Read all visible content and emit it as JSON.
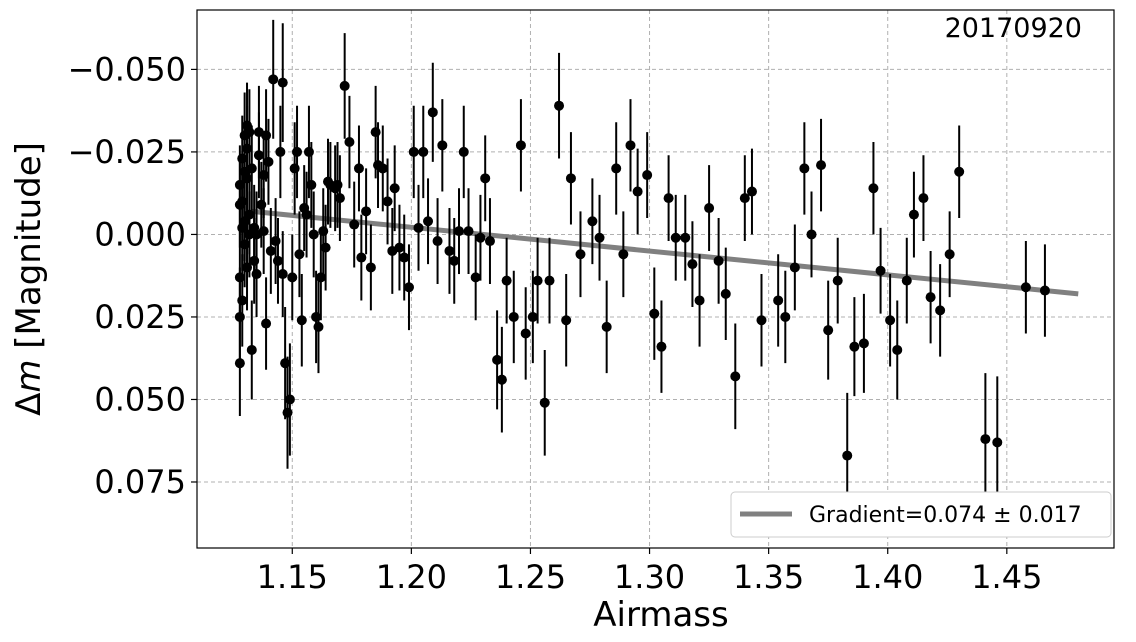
{
  "chart_data": {
    "type": "scatter",
    "title": "",
    "annotation": "20170920",
    "xlabel": "Airmass",
    "ylabel": "Δm [Magnitude]",
    "xlim": [
      1.11,
      1.495
    ],
    "ylim": [
      0.095,
      -0.068
    ],
    "y_inverted": true,
    "grid": true,
    "x_ticks": [
      1.15,
      1.2,
      1.25,
      1.3,
      1.35,
      1.4,
      1.45
    ],
    "x_tick_labels": [
      "1.15",
      "1.20",
      "1.25",
      "1.30",
      "1.35",
      "1.40",
      "1.45"
    ],
    "y_ticks": [
      -0.05,
      -0.025,
      0.0,
      0.025,
      0.05,
      0.075
    ],
    "y_tick_labels": [
      "−0.050",
      "−0.025",
      "0.000",
      "0.025",
      "0.050",
      "0.075"
    ],
    "legend": {
      "position": "bottom-right",
      "entries": [
        "Gradient=0.074 ± 0.017"
      ]
    },
    "colors": {
      "points": "#000000",
      "fit_line": "#808080",
      "grid": "#b0b0b0"
    },
    "fit": {
      "name": "Gradient=0.074 ± 0.017",
      "x": [
        1.133,
        1.48
      ],
      "y": [
        -0.007,
        0.018
      ]
    },
    "series": [
      {
        "points": [
          [
            1.128,
            0.039,
            0.016
          ],
          [
            1.128,
            0.025,
            0.015
          ],
          [
            1.128,
            0.013,
            0.014
          ],
          [
            1.128,
            -0.009,
            0.013
          ],
          [
            1.128,
            -0.015,
            0.012
          ],
          [
            1.129,
            0.02,
            0.014
          ],
          [
            1.129,
            -0.002,
            0.013
          ],
          [
            1.129,
            -0.023,
            0.013
          ],
          [
            1.129,
            -0.01,
            0.012
          ],
          [
            1.13,
            0.003,
            0.013
          ],
          [
            1.13,
            -0.019,
            0.013
          ],
          [
            1.13,
            -0.03,
            0.013
          ],
          [
            1.13,
            -0.004,
            0.012
          ],
          [
            1.131,
            0.01,
            0.013
          ],
          [
            1.131,
            -0.033,
            0.013
          ],
          [
            1.131,
            -0.017,
            0.013
          ],
          [
            1.131,
            -0.026,
            0.013
          ],
          [
            1.132,
            -0.006,
            0.012
          ],
          [
            1.132,
            0.0,
            0.013
          ],
          [
            1.132,
            -0.031,
            0.013
          ],
          [
            1.133,
            -0.02,
            0.013
          ],
          [
            1.133,
            0.035,
            0.015
          ],
          [
            1.134,
            0.008,
            0.013
          ],
          [
            1.134,
            -0.002,
            0.013
          ],
          [
            1.135,
            0.012,
            0.013
          ],
          [
            1.135,
            0.0,
            0.013
          ],
          [
            1.136,
            -0.031,
            0.014
          ],
          [
            1.136,
            -0.024,
            0.013
          ],
          [
            1.137,
            -0.009,
            0.013
          ],
          [
            1.138,
            -0.018,
            0.013
          ],
          [
            1.138,
            -0.001,
            0.013
          ],
          [
            1.139,
            -0.03,
            0.014
          ],
          [
            1.139,
            0.027,
            0.014
          ],
          [
            1.14,
            -0.022,
            0.013
          ],
          [
            1.141,
            0.005,
            0.013
          ],
          [
            1.142,
            -0.047,
            0.018
          ],
          [
            1.143,
            0.002,
            0.013
          ],
          [
            1.144,
            0.008,
            0.013
          ],
          [
            1.145,
            -0.025,
            0.014
          ],
          [
            1.146,
            -0.046,
            0.018
          ],
          [
            1.146,
            0.012,
            0.013
          ],
          [
            1.147,
            0.039,
            0.017
          ],
          [
            1.148,
            0.054,
            0.017
          ],
          [
            1.149,
            0.05,
            0.017
          ],
          [
            1.15,
            0.013,
            0.013
          ],
          [
            1.151,
            -0.02,
            0.014
          ],
          [
            1.152,
            -0.025,
            0.014
          ],
          [
            1.153,
            0.006,
            0.013
          ],
          [
            1.154,
            0.026,
            0.014
          ],
          [
            1.155,
            -0.008,
            0.013
          ],
          [
            1.156,
            -0.006,
            0.013
          ],
          [
            1.157,
            -0.025,
            0.014
          ],
          [
            1.158,
            -0.015,
            0.013
          ],
          [
            1.159,
            0.0,
            0.013
          ],
          [
            1.16,
            0.025,
            0.014
          ],
          [
            1.161,
            0.028,
            0.014
          ],
          [
            1.162,
            0.013,
            0.013
          ],
          [
            1.163,
            -0.001,
            0.013
          ],
          [
            1.164,
            0.004,
            0.013
          ],
          [
            1.165,
            -0.016,
            0.013
          ],
          [
            1.166,
            -0.015,
            0.013
          ],
          [
            1.168,
            -0.014,
            0.013
          ],
          [
            1.169,
            -0.015,
            0.013
          ],
          [
            1.17,
            -0.011,
            0.013
          ],
          [
            1.172,
            -0.045,
            0.016
          ],
          [
            1.174,
            -0.028,
            0.014
          ],
          [
            1.176,
            -0.003,
            0.013
          ],
          [
            1.178,
            -0.02,
            0.013
          ],
          [
            1.179,
            0.007,
            0.013
          ],
          [
            1.181,
            -0.007,
            0.013
          ],
          [
            1.183,
            0.01,
            0.013
          ],
          [
            1.185,
            -0.031,
            0.014
          ],
          [
            1.186,
            -0.021,
            0.013
          ],
          [
            1.188,
            -0.02,
            0.013
          ],
          [
            1.19,
            -0.01,
            0.013
          ],
          [
            1.192,
            0.005,
            0.013
          ],
          [
            1.193,
            -0.014,
            0.013
          ],
          [
            1.195,
            0.004,
            0.013
          ],
          [
            1.197,
            0.007,
            0.013
          ],
          [
            1.199,
            0.016,
            0.013
          ],
          [
            1.201,
            -0.025,
            0.014
          ],
          [
            1.203,
            -0.002,
            0.013
          ],
          [
            1.205,
            -0.025,
            0.014
          ],
          [
            1.207,
            -0.004,
            0.013
          ],
          [
            1.209,
            -0.037,
            0.015
          ],
          [
            1.211,
            0.002,
            0.013
          ],
          [
            1.213,
            -0.027,
            0.014
          ],
          [
            1.216,
            0.005,
            0.013
          ],
          [
            1.218,
            0.008,
            0.013
          ],
          [
            1.22,
            -0.001,
            0.013
          ],
          [
            1.222,
            -0.025,
            0.014
          ],
          [
            1.224,
            -0.001,
            0.013
          ],
          [
            1.227,
            0.013,
            0.013
          ],
          [
            1.229,
            0.001,
            0.013
          ],
          [
            1.231,
            -0.017,
            0.013
          ],
          [
            1.233,
            0.002,
            0.013
          ],
          [
            1.236,
            0.038,
            0.015
          ],
          [
            1.238,
            0.044,
            0.016
          ],
          [
            1.24,
            0.014,
            0.013
          ],
          [
            1.243,
            0.025,
            0.014
          ],
          [
            1.246,
            -0.027,
            0.014
          ],
          [
            1.248,
            0.03,
            0.014
          ],
          [
            1.251,
            0.025,
            0.014
          ],
          [
            1.253,
            0.014,
            0.013
          ],
          [
            1.256,
            0.051,
            0.016
          ],
          [
            1.258,
            0.014,
            0.013
          ],
          [
            1.262,
            -0.039,
            0.016
          ],
          [
            1.265,
            0.026,
            0.014
          ],
          [
            1.267,
            -0.017,
            0.014
          ],
          [
            1.271,
            0.006,
            0.013
          ],
          [
            1.276,
            -0.004,
            0.013
          ],
          [
            1.279,
            0.001,
            0.013
          ],
          [
            1.282,
            0.028,
            0.014
          ],
          [
            1.286,
            -0.02,
            0.014
          ],
          [
            1.289,
            0.006,
            0.013
          ],
          [
            1.292,
            -0.027,
            0.014
          ],
          [
            1.295,
            -0.013,
            0.013
          ],
          [
            1.299,
            -0.018,
            0.013
          ],
          [
            1.302,
            0.024,
            0.014
          ],
          [
            1.305,
            0.034,
            0.014
          ],
          [
            1.308,
            -0.011,
            0.013
          ],
          [
            1.311,
            0.001,
            0.013
          ],
          [
            1.315,
            0.001,
            0.013
          ],
          [
            1.318,
            0.009,
            0.013
          ],
          [
            1.321,
            0.02,
            0.014
          ],
          [
            1.325,
            -0.008,
            0.013
          ],
          [
            1.329,
            0.008,
            0.013
          ],
          [
            1.332,
            0.018,
            0.014
          ],
          [
            1.336,
            0.043,
            0.016
          ],
          [
            1.34,
            -0.011,
            0.013
          ],
          [
            1.343,
            -0.013,
            0.013
          ],
          [
            1.347,
            0.026,
            0.014
          ],
          [
            1.354,
            0.02,
            0.014
          ],
          [
            1.357,
            0.025,
            0.014
          ],
          [
            1.361,
            0.01,
            0.013
          ],
          [
            1.365,
            -0.02,
            0.014
          ],
          [
            1.368,
            0.0,
            0.013
          ],
          [
            1.372,
            -0.021,
            0.014
          ],
          [
            1.375,
            0.029,
            0.015
          ],
          [
            1.379,
            0.014,
            0.013
          ],
          [
            1.383,
            0.067,
            0.019
          ],
          [
            1.386,
            0.034,
            0.015
          ],
          [
            1.39,
            0.033,
            0.015
          ],
          [
            1.394,
            -0.014,
            0.014
          ],
          [
            1.397,
            0.011,
            0.013
          ],
          [
            1.401,
            0.026,
            0.014
          ],
          [
            1.404,
            0.035,
            0.015
          ],
          [
            1.408,
            0.014,
            0.013
          ],
          [
            1.411,
            -0.006,
            0.013
          ],
          [
            1.415,
            -0.011,
            0.013
          ],
          [
            1.418,
            0.019,
            0.014
          ],
          [
            1.422,
            0.023,
            0.014
          ],
          [
            1.426,
            0.006,
            0.013
          ],
          [
            1.43,
            -0.019,
            0.014
          ],
          [
            1.441,
            0.062,
            0.02
          ],
          [
            1.446,
            0.063,
            0.02
          ],
          [
            1.458,
            0.016,
            0.014
          ],
          [
            1.466,
            0.017,
            0.014
          ]
        ]
      }
    ]
  }
}
